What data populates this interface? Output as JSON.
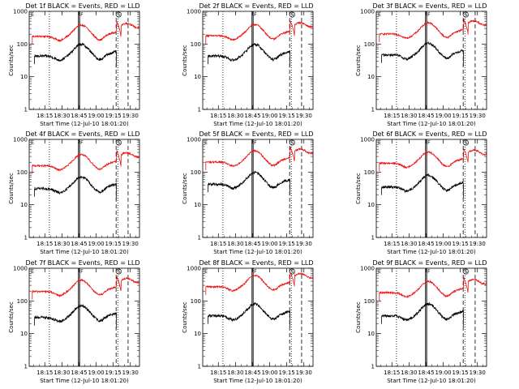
{
  "chart_data": {
    "type": "line",
    "layout_grid": "3x3",
    "xlabel": "Start Time (12-Jul-10 18:01:20)",
    "ylabel": "Counts/sec",
    "x_tick_labels": [
      "18:15",
      "18:30",
      "18:45",
      "19:00",
      "19:15",
      "19:30"
    ],
    "x_tick_minutes": [
      15,
      30,
      45,
      60,
      75,
      90
    ],
    "xlim_minutes_after_18_00": [
      1.3,
      98
    ],
    "yscale": "log",
    "ylim": [
      1,
      1000
    ],
    "y_tick_labels": [
      "1",
      "10",
      "100",
      "1000"
    ],
    "y_tick_values": [
      1,
      10,
      100,
      1000
    ],
    "series_colors": {
      "events": "#000000",
      "lld": "#ee1111"
    },
    "marker_labels": [
      "E",
      "F",
      "S"
    ],
    "vertical_markers": {
      "dotted_minutes": [
        19,
        79
      ],
      "solid_minutes": [
        44.5,
        45.5
      ],
      "dashed_minutes": [
        77.5,
        88
      ]
    },
    "panels": [
      {
        "title": "Det 1f BLACK = Events, RED = LLD",
        "events_base": 55,
        "lld_base": 220
      },
      {
        "title": "Det 2f BLACK = Events, RED = LLD",
        "events_base": 55,
        "lld_base": 230
      },
      {
        "title": "Det 3f BLACK = Events, RED = LLD",
        "events_base": 60,
        "lld_base": 260
      },
      {
        "title": "Det 4f BLACK = Events, RED = LLD",
        "events_base": 40,
        "lld_base": 200
      },
      {
        "title": "Det 5f BLACK = Events, RED = LLD",
        "events_base": 55,
        "lld_base": 260
      },
      {
        "title": "Det 6f BLACK = Events, RED = LLD",
        "events_base": 45,
        "lld_base": 240
      },
      {
        "title": "Det 7f BLACK = Events, RED = LLD",
        "events_base": 40,
        "lld_base": 250
      },
      {
        "title": "Det 8f BLACK = Events, RED = LLD",
        "events_base": 45,
        "lld_base": 350
      },
      {
        "title": "Det 9f BLACK = Events, RED = LLD",
        "events_base": 45,
        "lld_base": 230
      }
    ]
  }
}
